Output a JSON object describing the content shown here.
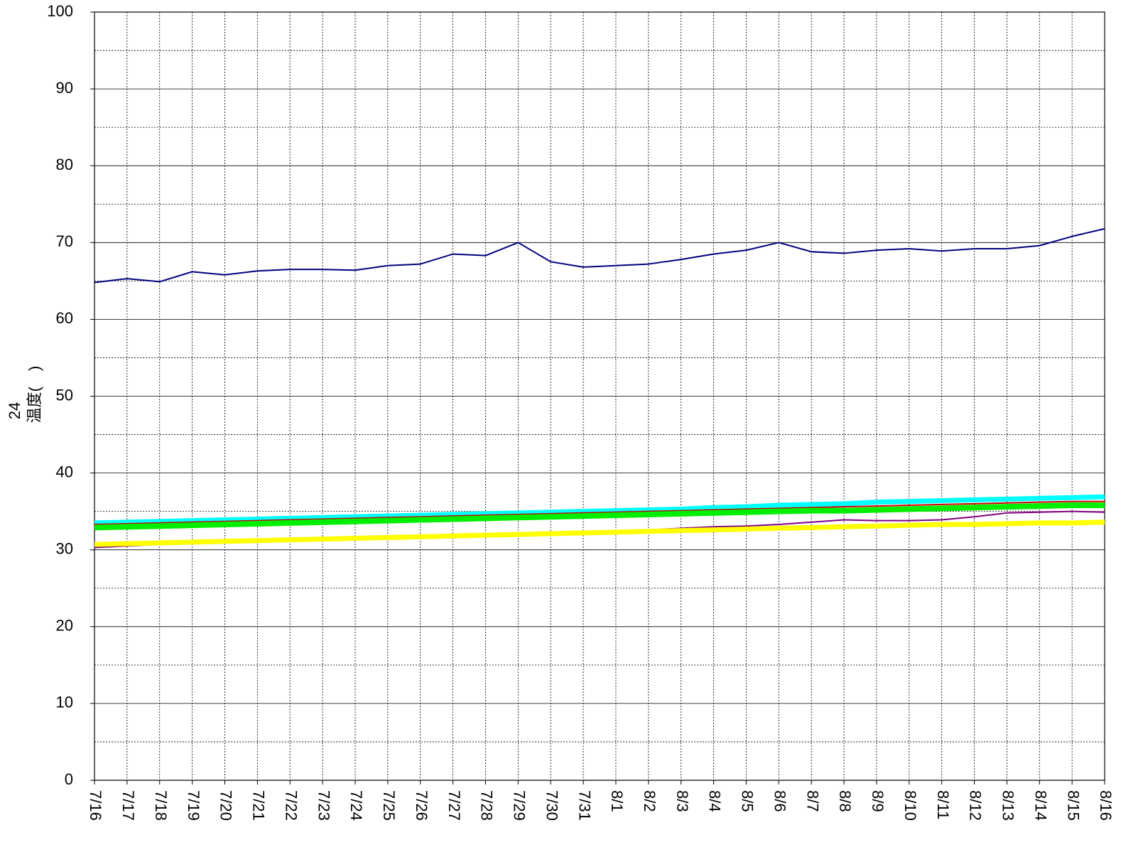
{
  "chart_data": {
    "type": "line",
    "ylabel": "温度(　)",
    "annotations": [
      "24"
    ],
    "categories": [
      "7/16",
      "7/17",
      "7/18",
      "7/19",
      "7/20",
      "7/21",
      "7/22",
      "7/23",
      "7/24",
      "7/25",
      "7/26",
      "7/27",
      "7/28",
      "7/29",
      "7/30",
      "7/31",
      "8/1",
      "8/2",
      "8/3",
      "8/4",
      "8/5",
      "8/6",
      "8/7",
      "8/8",
      "8/9",
      "8/10",
      "8/11",
      "8/12",
      "8/13",
      "8/14",
      "8/15",
      "8/16"
    ],
    "series": [
      {
        "color": "#00ffff",
        "line_width": 7,
        "values": [
          33.5,
          33.6,
          33.7,
          33.8,
          33.9,
          34.0,
          34.1,
          34.2,
          34.3,
          34.4,
          34.5,
          34.6,
          34.7,
          34.8,
          34.9,
          35.0,
          35.1,
          35.2,
          35.3,
          35.5,
          35.6,
          35.8,
          35.9,
          36.0,
          36.2,
          36.3,
          36.4,
          36.5,
          36.6,
          36.7,
          36.8,
          36.9
        ]
      },
      {
        "color": "#cc0000",
        "line_width": 2,
        "values": [
          33.3,
          33.4,
          33.5,
          33.6,
          33.7,
          33.8,
          33.9,
          34.0,
          34.1,
          34.2,
          34.3,
          34.4,
          34.5,
          34.6,
          34.7,
          34.8,
          34.9,
          35.0,
          35.1,
          35.2,
          35.3,
          35.4,
          35.5,
          35.6,
          35.7,
          35.8,
          35.9,
          36.0,
          36.1,
          36.2,
          36.3,
          36.3
        ]
      },
      {
        "color": "#00ee00",
        "line_width": 8,
        "values": [
          32.9,
          33.0,
          33.1,
          33.2,
          33.3,
          33.4,
          33.5,
          33.6,
          33.7,
          33.8,
          33.9,
          34.0,
          34.1,
          34.2,
          34.3,
          34.4,
          34.5,
          34.6,
          34.7,
          34.8,
          34.9,
          35.0,
          35.1,
          35.1,
          35.2,
          35.3,
          35.4,
          35.5,
          35.6,
          35.7,
          35.8,
          35.8
        ]
      },
      {
        "color": "#800080",
        "line_width": 2,
        "values": [
          30.3,
          30.5,
          30.7,
          30.9,
          31.0,
          31.1,
          31.2,
          31.3,
          31.4,
          31.5,
          31.6,
          31.7,
          31.8,
          32.0,
          32.1,
          32.2,
          32.4,
          32.6,
          32.8,
          33.0,
          33.1,
          33.3,
          33.6,
          33.9,
          33.8,
          33.8,
          33.9,
          34.3,
          34.8,
          34.9,
          35.0,
          34.9
        ]
      },
      {
        "color": "#ffff00",
        "line_width": 7,
        "values": [
          30.7,
          30.8,
          30.9,
          31.0,
          31.1,
          31.2,
          31.3,
          31.4,
          31.5,
          31.6,
          31.7,
          31.8,
          31.9,
          32.0,
          32.1,
          32.2,
          32.3,
          32.4,
          32.5,
          32.6,
          32.7,
          32.8,
          32.9,
          33.0,
          33.1,
          33.2,
          33.3,
          33.3,
          33.4,
          33.5,
          33.5,
          33.6
        ]
      },
      {
        "color": "#000080",
        "line_width": 2,
        "values": [
          64.8,
          65.3,
          64.9,
          66.2,
          65.8,
          66.3,
          66.5,
          66.5,
          66.4,
          67.0,
          67.2,
          68.5,
          68.3,
          70.0,
          67.5,
          66.8,
          67.0,
          67.2,
          67.8,
          68.5,
          69.0,
          70.0,
          68.8,
          68.6,
          69.0,
          69.2,
          68.9,
          69.2,
          69.2,
          69.6,
          70.8,
          71.8
        ]
      }
    ],
    "ylim": [
      0,
      100
    ],
    "yticks": [
      0,
      10,
      20,
      30,
      40,
      50,
      60,
      70,
      80,
      90,
      100
    ],
    "yticks_minor": [
      5,
      15,
      25,
      35,
      45,
      55,
      65,
      75,
      85,
      95
    ],
    "grid": true
  }
}
